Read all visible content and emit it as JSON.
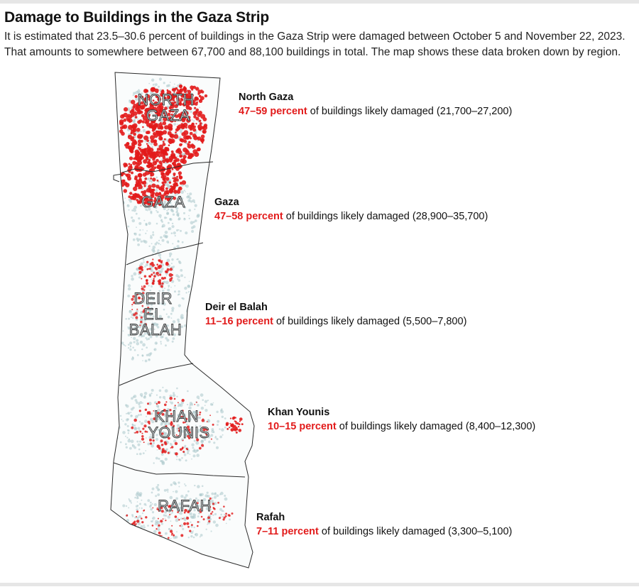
{
  "title": "Damage to Buildings in the Gaza Strip",
  "subtitle": [
    "It is estimated that 23.5–30.6 percent of buildings in the Gaza Strip were damaged between October 5 and November 22, 2023.",
    "That amounts to somewhere between 67,700 and 88,100 buildings in total. The map shows these data broken down by region."
  ],
  "colors": {
    "damage": "#e21b1b",
    "buildings": "#a9c7cb",
    "border": "#2b2b2b"
  },
  "map": {
    "map_labels": [
      {
        "region": "north-gaza",
        "lines": [
          "NORTH",
          "GAZA"
        ]
      },
      {
        "region": "gaza",
        "lines": [
          "GAZA"
        ]
      },
      {
        "region": "deir-el-balah",
        "lines": [
          "DEIR",
          "EL",
          "BALAH"
        ]
      },
      {
        "region": "khan-younis",
        "lines": [
          "KHAN",
          "YOUNIS"
        ]
      },
      {
        "region": "rafah",
        "lines": [
          "RAFAH"
        ]
      }
    ]
  },
  "regions": [
    {
      "name": "North Gaza",
      "range": "47–59 percent",
      "detail": " of buildings likely damaged (21,700–27,200)"
    },
    {
      "name": "Gaza",
      "range": "47–58 percent",
      "detail": " of buildings likely damaged (28,900–35,700)"
    },
    {
      "name": "Deir el Balah",
      "range": "11–16 percent",
      "detail": " of buildings likely damaged (5,500–7,800)"
    },
    {
      "name": "Khan Younis",
      "range": "10–15 percent",
      "detail": " of buildings likely damaged (8,400–12,300)"
    },
    {
      "name": "Rafah",
      "range": "7–11 percent",
      "detail": " of buildings likely damaged (3,300–5,100)"
    }
  ]
}
